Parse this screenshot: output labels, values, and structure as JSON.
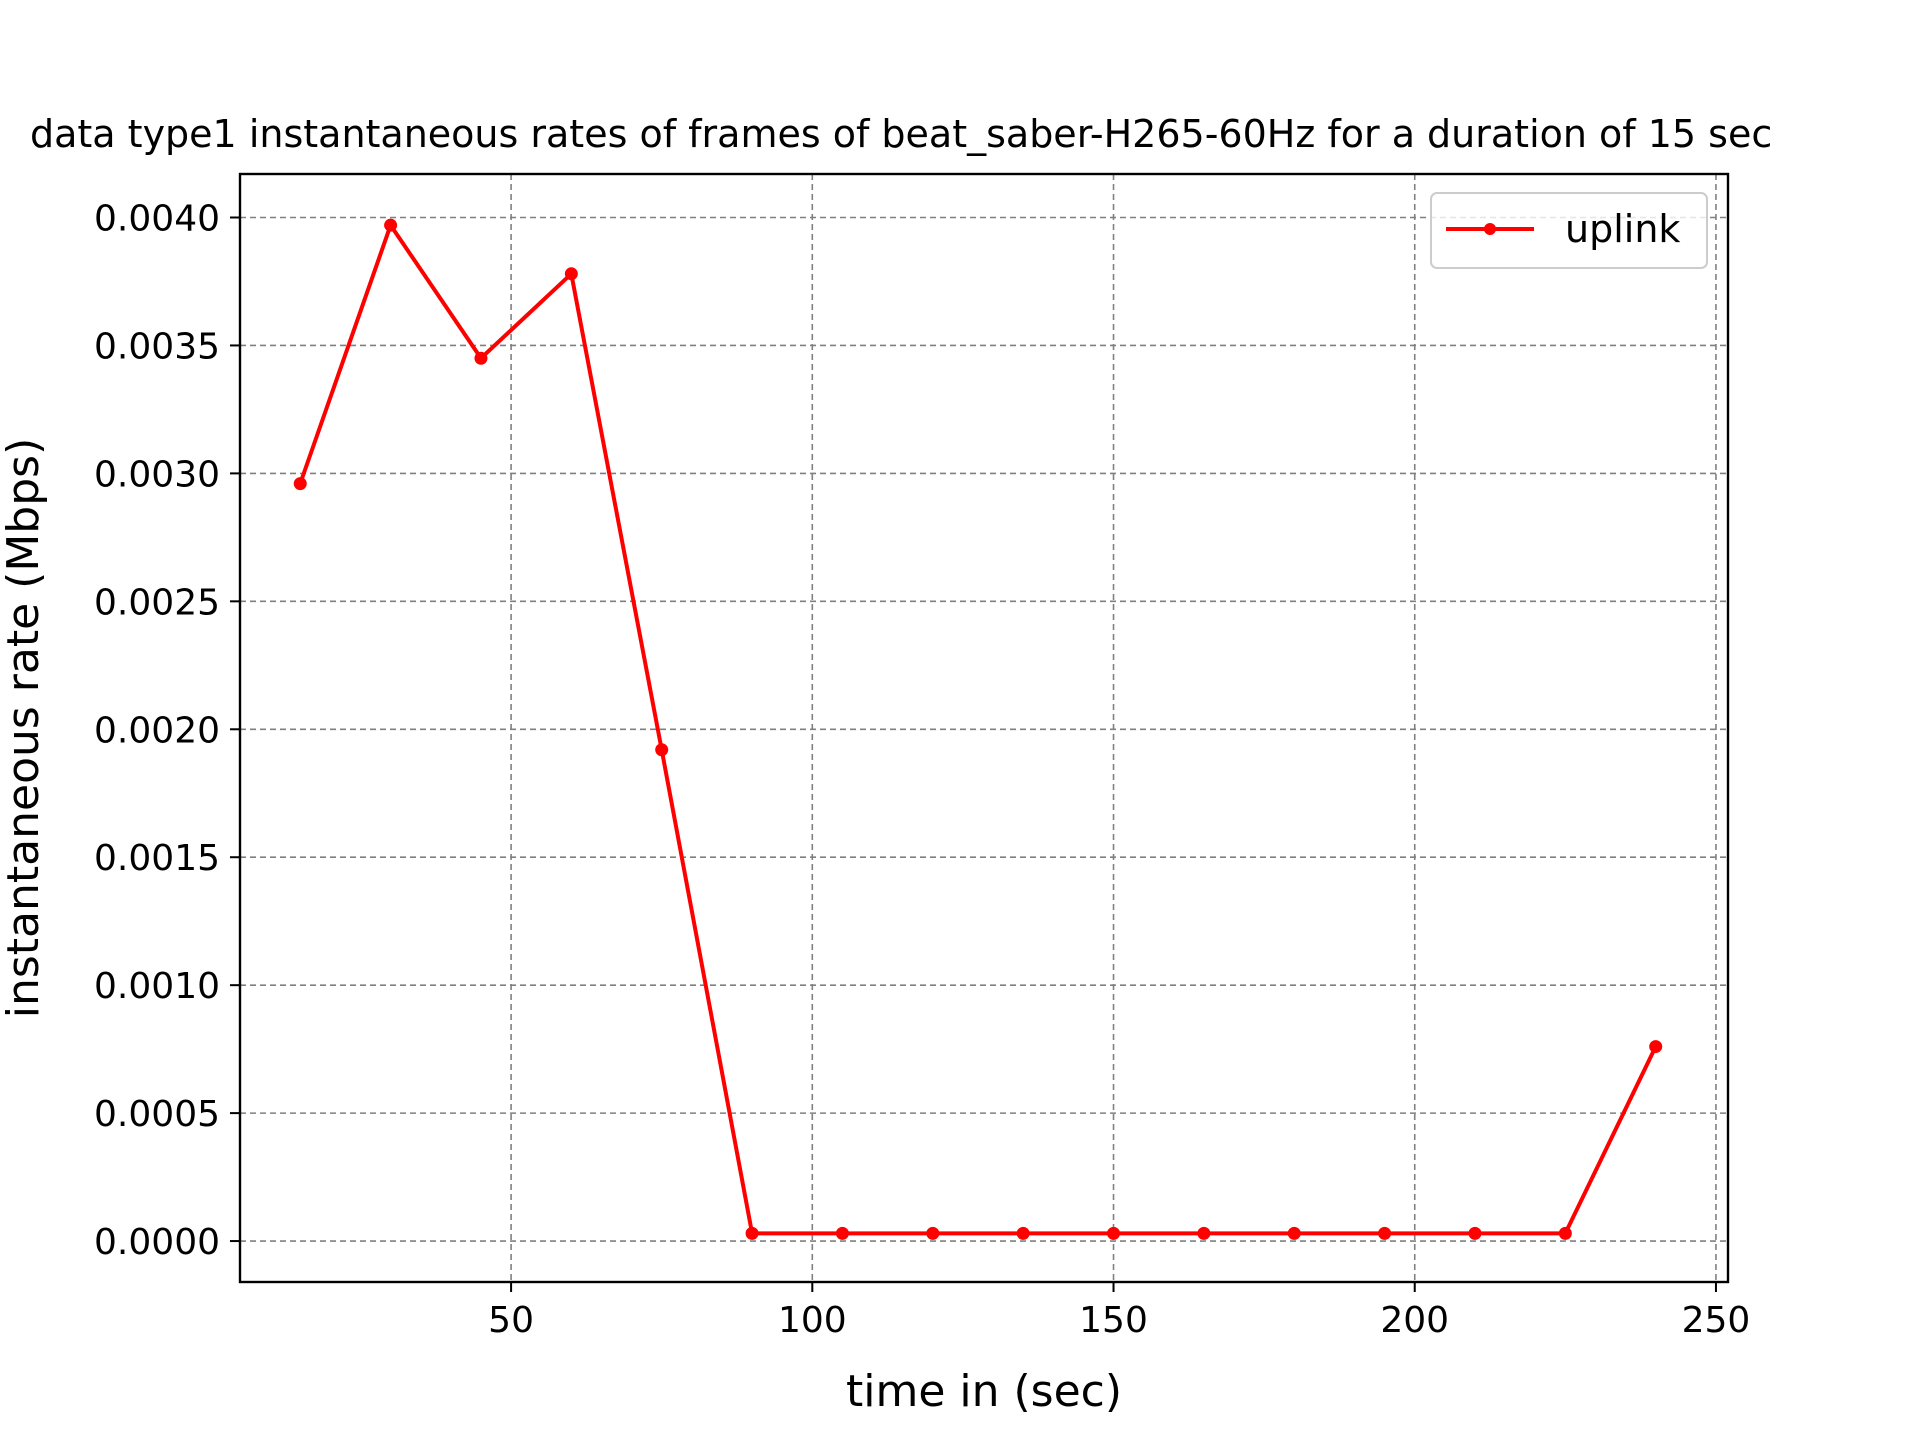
{
  "chart_data": {
    "type": "line",
    "title": "data type1 instantaneous rates of frames of beat_saber-H265-60Hz for a duration of 15 sec",
    "xlabel": "time in (sec)",
    "ylabel": "instantaneous rate (Mbps)",
    "xlim": [
      5,
      252
    ],
    "ylim": [
      -0.00016,
      0.00417
    ],
    "xticks": [
      50,
      100,
      150,
      200,
      250
    ],
    "yticks": [
      0.0,
      0.0005,
      0.001,
      0.0015,
      0.002,
      0.0025,
      0.003,
      0.0035,
      0.004
    ],
    "xtick_labels": [
      "50",
      "100",
      "150",
      "200",
      "250"
    ],
    "ytick_labels": [
      "0.0000",
      "0.0005",
      "0.0010",
      "0.0015",
      "0.0020",
      "0.0025",
      "0.0030",
      "0.0035",
      "0.0040"
    ],
    "grid": true,
    "legend_position": "top-right",
    "series": [
      {
        "name": "uplink",
        "color": "#ff0000",
        "marker": "circle",
        "x": [
          15,
          30,
          45,
          60,
          75,
          90,
          105,
          120,
          135,
          150,
          165,
          180,
          195,
          210,
          225,
          240
        ],
        "y": [
          0.00296,
          0.00397,
          0.00345,
          0.00378,
          0.00192,
          3e-05,
          3e-05,
          3e-05,
          3e-05,
          3e-05,
          3e-05,
          3e-05,
          3e-05,
          3e-05,
          3e-05,
          0.00076
        ]
      }
    ]
  }
}
